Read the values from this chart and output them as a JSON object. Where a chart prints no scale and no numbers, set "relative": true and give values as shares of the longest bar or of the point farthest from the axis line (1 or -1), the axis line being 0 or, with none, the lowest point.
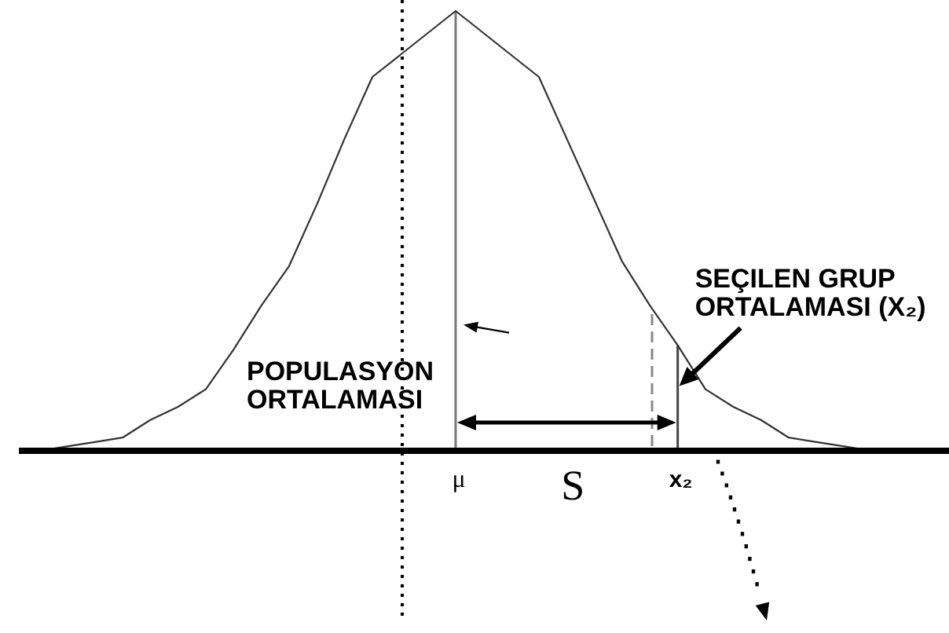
{
  "chart_data": {
    "type": "line",
    "relative": true,
    "marker": "none",
    "categories": [
      null,
      null,
      null,
      null,
      null,
      null,
      null,
      null,
      null,
      null,
      null,
      null,
      null,
      null,
      null,
      "μ",
      null,
      null,
      null,
      null,
      null,
      null,
      null,
      "x₂",
      null,
      null,
      null,
      null,
      null,
      null,
      null
    ],
    "series": [
      {
        "color": "#333333",
        "values": [
          0,
          0.01,
          0.02,
          0.03,
          0.07,
          0.1,
          0.14,
          0.23,
          0.33,
          0.42,
          0.56,
          0.71,
          0.85,
          0.9,
          0.95,
          1,
          0.95,
          0.9,
          0.85,
          0.71,
          0.57,
          0.43,
          0.33,
          0.24,
          0.14,
          0.1,
          0.07,
          0.03,
          0.02,
          0.01,
          0
        ]
      }
    ],
    "ref_lines": [
      {
        "axis": "x",
        "value": "μ",
        "color": "#7a7a7a",
        "line_style": "solid"
      },
      {
        "axis": "x",
        "value": "x₂",
        "color": "#444444",
        "line_style": "solid"
      }
    ],
    "annotations": [
      {
        "text": "POPULASYON\nORTALAMASI",
        "x": "μ",
        "y": 0.29
      },
      {
        "text": "SEÇILEN GRUP\nORTALAMASI (X₂)",
        "x": "x₂",
        "y": 0.14
      },
      "S"
    ]
  }
}
